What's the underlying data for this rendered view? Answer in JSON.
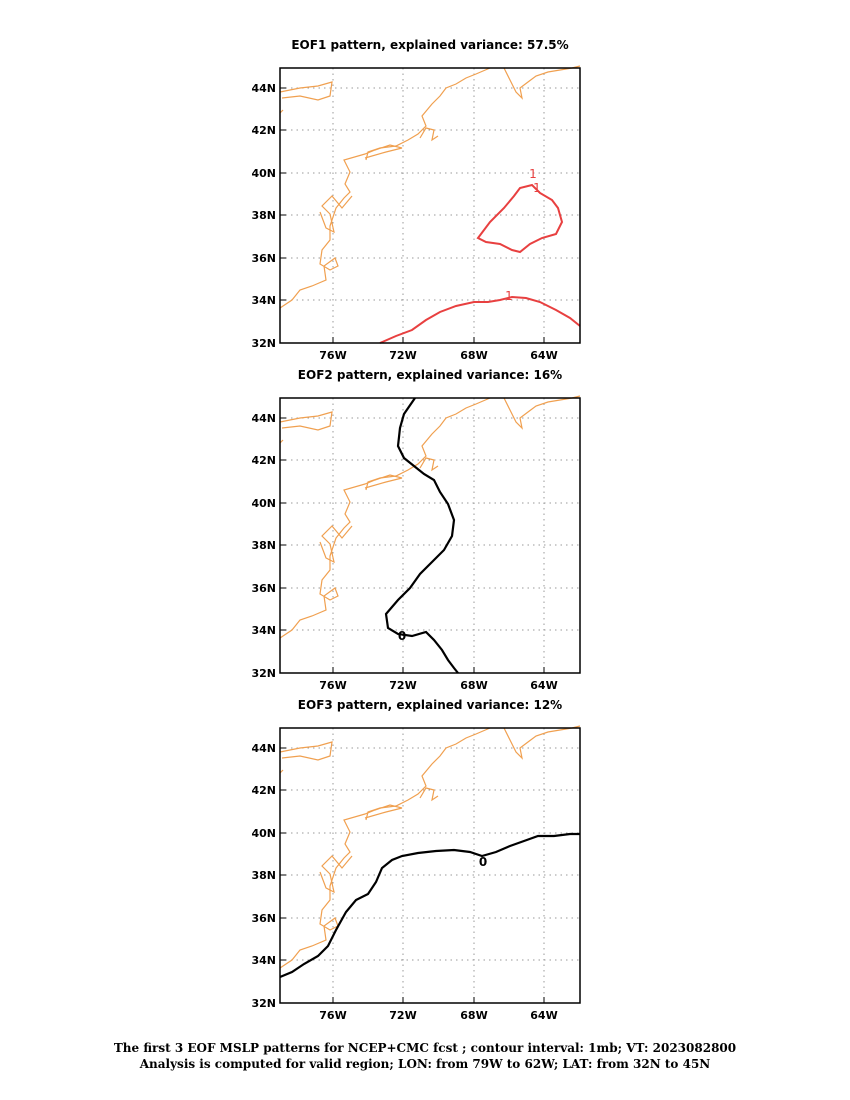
{
  "panels": [
    {
      "title": "EOF1 pattern, explained variance: 57.5%",
      "contour_label": "1",
      "contour_color": "#e84040"
    },
    {
      "title": "EOF2 pattern, explained variance: 16%",
      "contour_label": "0",
      "contour_color": "#000000"
    },
    {
      "title": "EOF3 pattern, explained variance: 12%",
      "contour_label": "0",
      "contour_color": "#000000"
    }
  ],
  "lat_ticks": [
    "44N",
    "42N",
    "40N",
    "38N",
    "36N",
    "34N",
    "32N"
  ],
  "lon_ticks": [
    "76W",
    "72W",
    "68W",
    "64W"
  ],
  "coastline_color": "#f0a050",
  "caption": {
    "line1": "The first 3 EOF MSLP patterns for NCEP+CMC fcst ; contour interval: 1mb; VT: 2023082800",
    "line2": "Analysis is computed for valid region; LON: from 79W to 62W; LAT: from 32N to 45N"
  }
}
